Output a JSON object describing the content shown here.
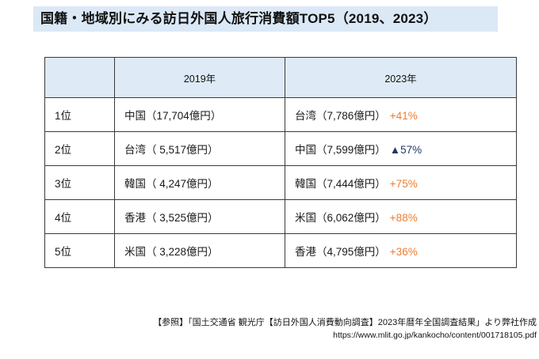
{
  "title": "国籍・地域別にみる訪日外国人旅行消費額TOP5（2019、2023）",
  "table": {
    "headers": {
      "rank": "",
      "col2019": "2019年",
      "col2023": "2023年"
    },
    "rows": [
      {
        "rank": "1位",
        "y2019": "中国（17,704億円）",
        "y2023": "台湾（7,786億円）",
        "change": "+41%",
        "change_type": "up"
      },
      {
        "rank": "2位",
        "y2019": "台湾（ 5,517億円）",
        "y2023": "中国（7,599億円）",
        "change": "▲57%",
        "change_type": "down"
      },
      {
        "rank": "3位",
        "y2019": "韓国（ 4,247億円）",
        "y2023": "韓国（7,444億円）",
        "change": "+75%",
        "change_type": "up"
      },
      {
        "rank": "4位",
        "y2019": "香港（ 3,525億円）",
        "y2023": "米国（6,062億円）",
        "change": "+88%",
        "change_type": "up"
      },
      {
        "rank": "5位",
        "y2019": "米国（ 3,228億円）",
        "y2023": "香港（4,795億円）",
        "change": "+36%",
        "change_type": "up"
      }
    ]
  },
  "colors": {
    "up": "#ED7D31",
    "down": "#1F3864",
    "header_bg": "#DEEAF6",
    "title_bg": "#DBE8F6"
  },
  "footer": {
    "source": "【参照】「国土交通省 観光庁【訪日外国人消費動向調査】2023年暦年全国調査結果」より弊社作成",
    "url": "https://www.mlit.go.jp/kankocho/content/001718105.pdf"
  }
}
